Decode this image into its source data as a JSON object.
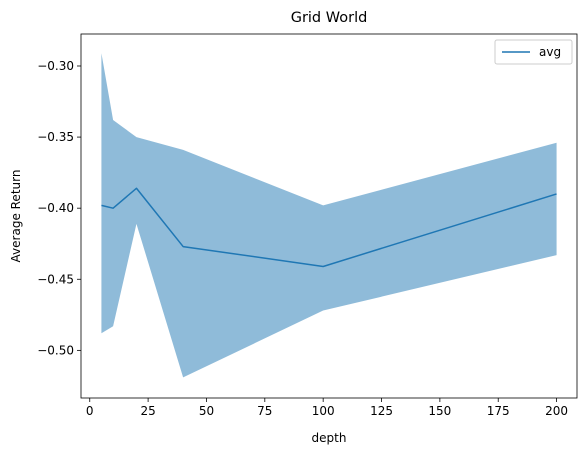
{
  "chart_data": {
    "type": "line",
    "title": "Grid World",
    "xlabel": "depth",
    "ylabel": "Average Return",
    "x": [
      5,
      10,
      20,
      40,
      100,
      200
    ],
    "series": [
      {
        "name": "avg",
        "values": [
          -0.398,
          -0.4,
          -0.386,
          -0.427,
          -0.441,
          -0.39
        ],
        "band_upper": [
          -0.291,
          -0.338,
          -0.35,
          -0.359,
          -0.398,
          -0.354
        ],
        "band_lower": [
          -0.488,
          -0.483,
          -0.411,
          -0.519,
          -0.472,
          -0.433
        ],
        "line_color": "#1f77b4",
        "band_color": "#1f77b4",
        "band_opacity": 0.5
      }
    ],
    "xlim": [
      -3.75,
      208.75
    ],
    "ylim": [
      -0.5335,
      -0.2775
    ],
    "xticks": [
      0,
      25,
      50,
      75,
      100,
      125,
      150,
      175,
      200
    ],
    "xtick_labels": [
      "0",
      "25",
      "50",
      "75",
      "100",
      "125",
      "150",
      "175",
      "200"
    ],
    "yticks": [
      -0.5,
      -0.45,
      -0.4,
      -0.35,
      -0.3
    ],
    "ytick_labels": [
      "−0.50",
      "−0.45",
      "−0.40",
      "−0.35",
      "−0.30"
    ],
    "grid": false,
    "legend": "top-right"
  }
}
